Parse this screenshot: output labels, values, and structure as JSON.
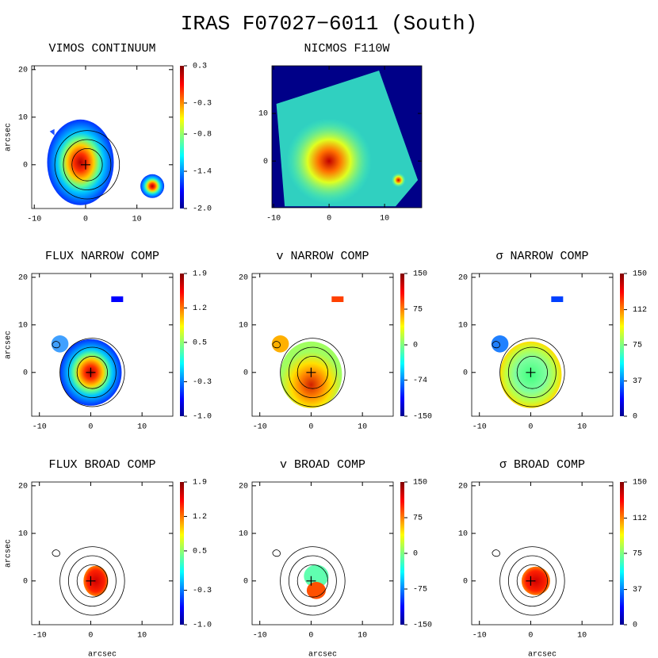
{
  "title": "IRAS F07027−6011 (South)",
  "chart_data": [
    {
      "type": "map",
      "title": "VIMOS CONTINUUM",
      "xlim": [
        -10.5,
        17
      ],
      "ylim": [
        -9.2,
        20.8
      ],
      "xticks": [
        -10,
        0,
        10
      ],
      "yticks": [
        0,
        10,
        20
      ],
      "ylabel": "arcsec",
      "clim": [
        -2,
        0.3
      ],
      "cticks": [
        0.3,
        -0.3,
        -0.8,
        -1.4,
        {
          "value": -2,
          "label": "-2.0"
        }
      ]
    },
    {
      "type": "map",
      "title": "NICMOS F110W",
      "xlim": [
        -10.3,
        16.7
      ],
      "ylim": [
        -9.8,
        20
      ],
      "xticks": [
        -10,
        0,
        10
      ],
      "yticks": [
        0,
        10
      ]
    },
    {
      "type": "map",
      "title": "FLUX NARROW COMP",
      "xlim": [
        -11.5,
        16
      ],
      "ylim": [
        -9.2,
        20.8
      ],
      "xticks": [
        -10,
        0,
        10
      ],
      "yticks": [
        0,
        10,
        20
      ],
      "ylabel": "arcsec",
      "clim": [
        -1,
        1.9
      ],
      "cticks": [
        1.9,
        1.2,
        0.5,
        -0.3,
        {
          "value": -1,
          "label": "-1.0"
        }
      ]
    },
    {
      "type": "map",
      "title": "v NARROW COMP",
      "xlim": [
        -11.5,
        16
      ],
      "ylim": [
        -9.2,
        20.8
      ],
      "xticks": [
        -10,
        0,
        10
      ],
      "yticks": [
        0,
        10,
        20
      ],
      "clim": [
        -150,
        150
      ],
      "cticks": [
        150,
        75,
        0,
        -74,
        -150
      ]
    },
    {
      "type": "map",
      "title": "σ NARROW COMP",
      "xlim": [
        -11.5,
        16
      ],
      "ylim": [
        -9.2,
        20.8
      ],
      "xticks": [
        -10,
        0,
        10
      ],
      "yticks": [
        0,
        10,
        20
      ],
      "clim": [
        0,
        150
      ],
      "cticks": [
        150,
        112,
        75,
        37,
        0
      ]
    },
    {
      "type": "map",
      "title": "FLUX BROAD COMP",
      "xlim": [
        -11.5,
        16
      ],
      "ylim": [
        -9.2,
        20.8
      ],
      "xticks": [
        -10,
        0,
        10
      ],
      "yticks": [
        0,
        10,
        20
      ],
      "ylabel": "arcsec",
      "xlabel": "arcsec",
      "clim": [
        -1,
        1.9
      ],
      "cticks": [
        1.9,
        1.2,
        0.5,
        -0.3,
        {
          "value": -1,
          "label": "-1.0"
        }
      ]
    },
    {
      "type": "map",
      "title": "v BROAD COMP",
      "xlim": [
        -11.5,
        16
      ],
      "ylim": [
        -9.2,
        20.8
      ],
      "xticks": [
        -10,
        0,
        10
      ],
      "yticks": [
        0,
        10,
        20
      ],
      "xlabel": "arcsec",
      "clim": [
        -150,
        150
      ],
      "cticks": [
        150,
        75,
        0,
        -75,
        -150
      ]
    },
    {
      "type": "map",
      "title": "σ BROAD COMP",
      "xlim": [
        -11.5,
        16
      ],
      "ylim": [
        -9.2,
        20.8
      ],
      "xticks": [
        -10,
        0,
        10
      ],
      "yticks": [
        0,
        10,
        20
      ],
      "xlabel": "arcsec",
      "clim": [
        0,
        150
      ],
      "cticks": [
        150,
        112,
        75,
        37,
        0
      ]
    }
  ]
}
